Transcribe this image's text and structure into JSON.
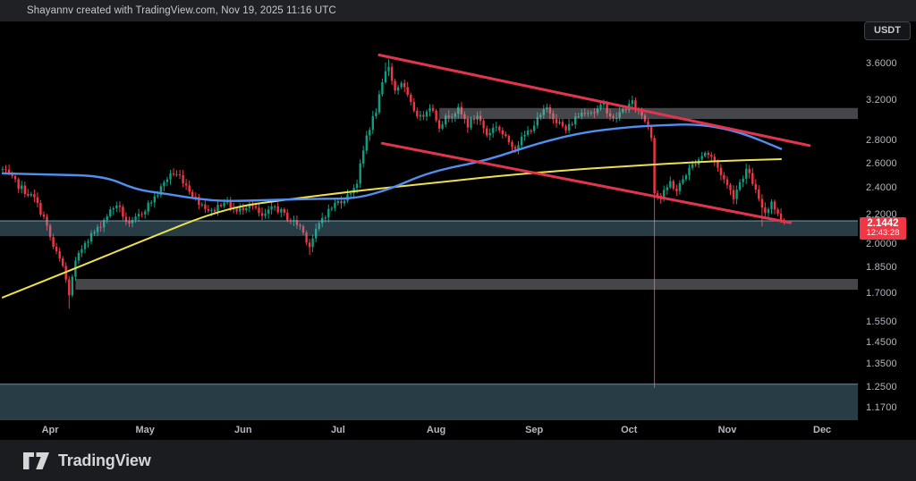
{
  "header": {
    "attribution": "Shayannv created with TradingView.com, Nov 19, 2025 11:16 UTC"
  },
  "toolbar": {
    "quote_badge": "USDT"
  },
  "footer": {
    "brand": "TradingView"
  },
  "price_tag": {
    "price": "2.1442",
    "countdown": "12:43:28"
  },
  "colors": {
    "up": "#0f9e82",
    "down": "#f23645",
    "ma_blue": "#4f8ff0",
    "ma_yellow": "#ece04d",
    "channel": "#e2344f",
    "tag": "#f23645",
    "zone_gray": "rgba(165,168,176,0.42)",
    "zone_teal": "rgba(110,165,190,0.36)",
    "zone_teal_edge": "rgba(130,185,205,0.55)"
  },
  "chart_data": {
    "type": "candlestick",
    "quote": "USDT",
    "scale": "log",
    "last_price": 2.1442,
    "countdown": "12:43:28",
    "ylim": [
      1.125,
      4.14
    ],
    "xlim_days": [
      0,
      270
    ],
    "price_ticks": [
      {
        "label": "3.6000",
        "value": 3.6
      },
      {
        "label": "3.2000",
        "value": 3.2
      },
      {
        "label": "2.8000",
        "value": 2.8
      },
      {
        "label": "2.6000",
        "value": 2.6
      },
      {
        "label": "2.4000",
        "value": 2.4
      },
      {
        "label": "2.2000",
        "value": 2.2
      },
      {
        "label": "2.0000",
        "value": 2.0
      },
      {
        "label": "1.8500",
        "value": 1.85
      },
      {
        "label": "1.7000",
        "value": 1.7
      },
      {
        "label": "1.5500",
        "value": 1.55
      },
      {
        "label": "1.4500",
        "value": 1.45
      },
      {
        "label": "1.3500",
        "value": 1.35
      },
      {
        "label": "1.2500",
        "value": 1.25
      },
      {
        "label": "1.1700",
        "value": 1.17
      }
    ],
    "month_ticks": [
      {
        "label": "Apr",
        "day": 15
      },
      {
        "label": "May",
        "day": 45
      },
      {
        "label": "Jun",
        "day": 76
      },
      {
        "label": "Jul",
        "day": 106
      },
      {
        "label": "Aug",
        "day": 137
      },
      {
        "label": "Sep",
        "day": 168
      },
      {
        "label": "Oct",
        "day": 198
      },
      {
        "label": "Nov",
        "day": 229
      },
      {
        "label": "Dec",
        "day": 259
      }
    ],
    "candles": {
      "days": 248,
      "synth": {
        "seed": 7,
        "close_jitter": 0.011,
        "wick_min": 0.005,
        "wick_rand": 0.013
      },
      "close_anchors": [
        [
          0,
          2.55
        ],
        [
          5,
          2.42
        ],
        [
          10,
          2.32
        ],
        [
          13,
          2.18
        ],
        [
          16,
          1.98
        ],
        [
          19,
          1.86
        ],
        [
          21,
          1.7
        ],
        [
          23,
          1.88
        ],
        [
          26,
          2.02
        ],
        [
          30,
          2.1
        ],
        [
          33,
          2.2
        ],
        [
          36,
          2.28
        ],
        [
          40,
          2.12
        ],
        [
          44,
          2.22
        ],
        [
          49,
          2.36
        ],
        [
          53,
          2.52
        ],
        [
          56,
          2.5
        ],
        [
          61,
          2.32
        ],
        [
          66,
          2.22
        ],
        [
          70,
          2.31
        ],
        [
          74,
          2.22
        ],
        [
          78,
          2.29
        ],
        [
          82,
          2.18
        ],
        [
          86,
          2.26
        ],
        [
          90,
          2.18
        ],
        [
          94,
          2.12
        ],
        [
          97,
          1.99
        ],
        [
          101,
          2.18
        ],
        [
          105,
          2.28
        ],
        [
          109,
          2.34
        ],
        [
          112,
          2.45
        ],
        [
          115,
          2.85
        ],
        [
          118,
          3.1
        ],
        [
          121,
          3.5
        ],
        [
          122,
          3.58
        ],
        [
          124,
          3.3
        ],
        [
          126,
          3.4
        ],
        [
          129,
          3.15
        ],
        [
          132,
          3.02
        ],
        [
          135,
          3.15
        ],
        [
          138,
          2.95
        ],
        [
          141,
          3.05
        ],
        [
          144,
          3.1
        ],
        [
          147,
          2.95
        ],
        [
          150,
          3.05
        ],
        [
          153,
          2.86
        ],
        [
          156,
          2.95
        ],
        [
          159,
          2.82
        ],
        [
          162,
          2.75
        ],
        [
          165,
          2.85
        ],
        [
          169,
          3.0
        ],
        [
          172,
          3.12
        ],
        [
          175,
          3.0
        ],
        [
          178,
          2.9
        ],
        [
          181,
          3.02
        ],
        [
          184,
          3.1
        ],
        [
          187,
          3.08
        ],
        [
          190,
          3.15
        ],
        [
          193,
          3.0
        ],
        [
          196,
          3.1
        ],
        [
          199,
          3.17
        ],
        [
          202,
          3.05
        ],
        [
          204,
          2.95
        ],
        [
          205,
          2.85
        ],
        [
          206,
          2.38
        ],
        [
          208,
          2.32
        ],
        [
          211,
          2.45
        ],
        [
          213,
          2.38
        ],
        [
          216,
          2.52
        ],
        [
          219,
          2.62
        ],
        [
          222,
          2.7
        ],
        [
          224,
          2.66
        ],
        [
          227,
          2.52
        ],
        [
          229,
          2.42
        ],
        [
          231,
          2.34
        ],
        [
          233,
          2.45
        ],
        [
          235,
          2.55
        ],
        [
          237,
          2.45
        ],
        [
          239,
          2.3
        ],
        [
          241,
          2.22
        ],
        [
          243,
          2.3
        ],
        [
          245,
          2.2
        ],
        [
          247,
          2.1442
        ]
      ],
      "extremes": [
        {
          "day": 21,
          "low": 1.62
        },
        {
          "day": 97,
          "low": 1.93
        },
        {
          "day": 121,
          "high": 3.62
        },
        {
          "day": 122,
          "high": 3.66
        },
        {
          "day": 206,
          "low": 1.25
        },
        {
          "day": 240,
          "low": 2.12
        }
      ]
    },
    "ma_blue": [
      [
        0,
        2.52
      ],
      [
        15,
        2.51
      ],
      [
        32,
        2.5
      ],
      [
        42,
        2.39
      ],
      [
        51,
        2.36
      ],
      [
        61,
        2.32
      ],
      [
        70,
        2.3
      ],
      [
        84,
        2.31
      ],
      [
        100,
        2.32
      ],
      [
        112,
        2.32
      ],
      [
        123,
        2.4
      ],
      [
        132,
        2.5
      ],
      [
        140,
        2.56
      ],
      [
        153,
        2.63
      ],
      [
        169,
        2.78
      ],
      [
        183,
        2.88
      ],
      [
        197,
        2.93
      ],
      [
        208,
        2.95
      ],
      [
        219,
        2.96
      ],
      [
        228,
        2.92
      ],
      [
        236,
        2.85
      ],
      [
        246,
        2.73
      ]
    ],
    "ma_yellow": [
      [
        0,
        1.68
      ],
      [
        22,
        1.84
      ],
      [
        44,
        2.02
      ],
      [
        70,
        2.25
      ],
      [
        92,
        2.32
      ],
      [
        112,
        2.38
      ],
      [
        135,
        2.44
      ],
      [
        157,
        2.5
      ],
      [
        180,
        2.55
      ],
      [
        197,
        2.58
      ],
      [
        222,
        2.62
      ],
      [
        246,
        2.64
      ]
    ],
    "trend_channel": {
      "upper": {
        "from_day": 119,
        "from_price": 3.71,
        "to_day": 255,
        "to_price": 2.76
      },
      "lower": {
        "from_day": 120,
        "from_price": 2.78,
        "to_day": 249,
        "to_price": 2.145
      }
    },
    "zones": [
      {
        "name": "supply-zone-3.0",
        "from_price": 3.01,
        "to_price": 3.12,
        "start_day": 138,
        "style": "gray"
      },
      {
        "name": "support-zone-1.75",
        "from_price": 1.723,
        "to_price": 1.785,
        "start_day": 23,
        "style": "gray"
      },
      {
        "name": "current-support-zone-2.1",
        "from_price": 2.053,
        "to_price": 2.158,
        "start_day": 0,
        "style": "teal"
      },
      {
        "name": "crash-low-zone-1.25",
        "from_price": 1.125,
        "to_price": 1.266,
        "start_day": 0,
        "style": "teal"
      }
    ]
  }
}
